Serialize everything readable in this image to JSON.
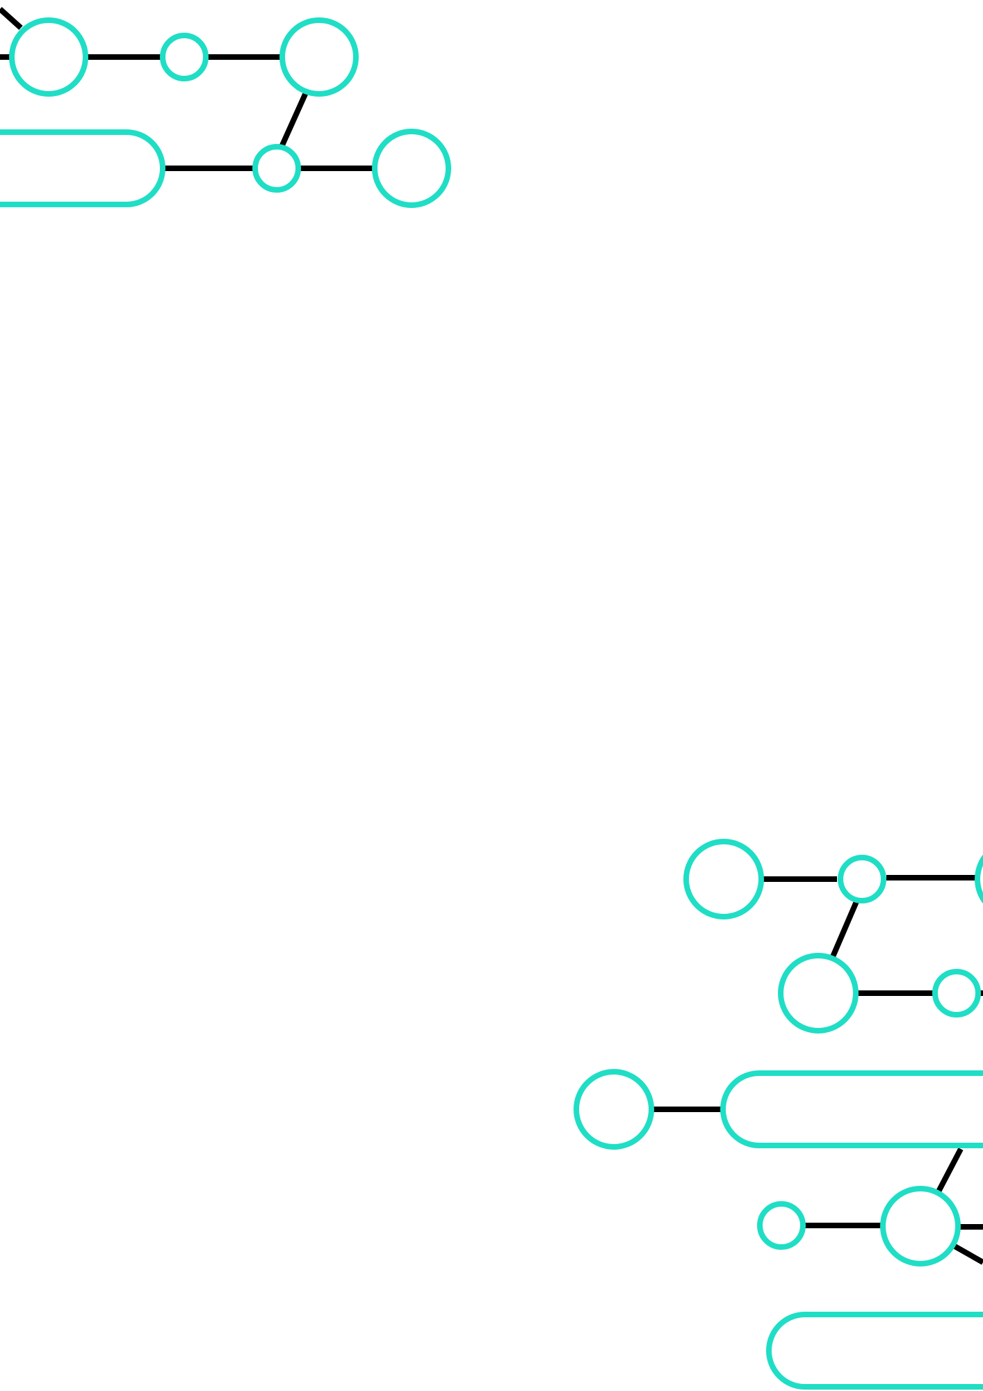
{
  "page": {
    "background": "#ffffff"
  },
  "style": {
    "node_color": "#1fdec5",
    "edge_color": "#000000"
  },
  "decoration": {
    "groups": [
      {
        "name": "top-left-network",
        "node_count": 8,
        "edge_count": 7
      },
      {
        "name": "bottom-right-network",
        "node_count": 11,
        "edge_count": 13
      }
    ]
  }
}
